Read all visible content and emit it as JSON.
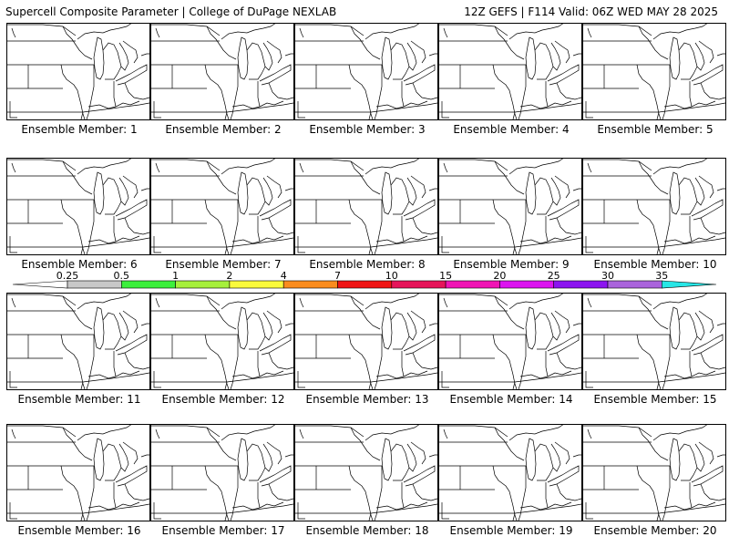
{
  "header": {
    "left": "Supercell Composite Parameter | College of DuPage NEXLAB",
    "right": "12Z GEFS | F114 Valid: 06Z WED MAY 28 2025"
  },
  "members": [
    {
      "label": "Ensemble Member: 1"
    },
    {
      "label": "Ensemble Member: 2"
    },
    {
      "label": "Ensemble Member: 3"
    },
    {
      "label": "Ensemble Member: 4"
    },
    {
      "label": "Ensemble Member: 5"
    },
    {
      "label": "Ensemble Member: 6"
    },
    {
      "label": "Ensemble Member: 7"
    },
    {
      "label": "Ensemble Member: 8"
    },
    {
      "label": "Ensemble Member: 9"
    },
    {
      "label": "Ensemble Member: 10"
    },
    {
      "label": "Ensemble Member: 11"
    },
    {
      "label": "Ensemble Member: 12"
    },
    {
      "label": "Ensemble Member: 13"
    },
    {
      "label": "Ensemble Member: 14"
    },
    {
      "label": "Ensemble Member: 15"
    },
    {
      "label": "Ensemble Member: 16"
    },
    {
      "label": "Ensemble Member: 17"
    },
    {
      "label": "Ensemble Member: 18"
    },
    {
      "label": "Ensemble Member: 19"
    },
    {
      "label": "Ensemble Member: 20"
    }
  ],
  "colorbar": {
    "ticks": [
      "0.25",
      "0.5",
      "1",
      "2",
      "4",
      "7",
      "10",
      "15",
      "20",
      "25",
      "30",
      "35"
    ],
    "colors": [
      "#c8c8c8",
      "#3cf03c",
      "#a6f03c",
      "#fafa3c",
      "#fa8c1e",
      "#f01414",
      "#e6145a",
      "#f014b4",
      "#dc14f0",
      "#8c14f0",
      "#aa64dc",
      "#28e6e6"
    ]
  },
  "colors": {
    "fill_gray": "#c8c8c8",
    "fill_green": "#3cf03c",
    "fill_lime": "#a6f03c",
    "fill_yellow": "#fafa3c",
    "map_lines": "#000000"
  }
}
